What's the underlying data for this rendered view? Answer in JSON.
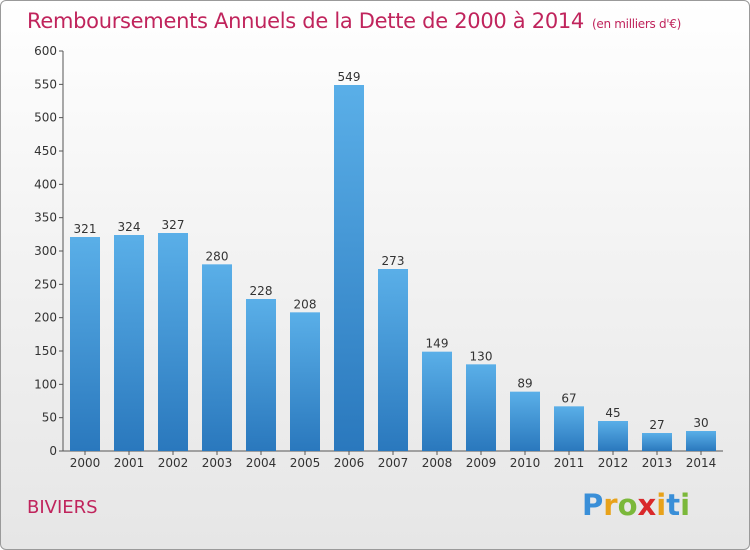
{
  "title": "Remboursements Annuels de la Dette de 2000 à 2014",
  "subtitle": "(en milliers d'€)",
  "commune": "BIVIERS",
  "logo": {
    "letters": [
      "P",
      "r",
      "o",
      "x",
      "i",
      "t",
      "i"
    ],
    "colors": [
      "#3a8fd8",
      "#e8a21a",
      "#7bb83a",
      "#d9282a",
      "#e8a21a",
      "#3a8fd8",
      "#7bb83a"
    ]
  },
  "colors": {
    "title": "#c0245c",
    "bar_top": "#5aafe8",
    "bar_bottom": "#2a78bd"
  },
  "chart_data": {
    "type": "bar",
    "categories": [
      "2000",
      "2001",
      "2002",
      "2003",
      "2004",
      "2005",
      "2006",
      "2007",
      "2008",
      "2009",
      "2010",
      "2011",
      "2012",
      "2013",
      "2014"
    ],
    "values": [
      321,
      324,
      327,
      280,
      228,
      208,
      549,
      273,
      149,
      130,
      89,
      67,
      45,
      27,
      30
    ],
    "ylim": [
      0,
      600
    ],
    "yticks": [
      0,
      50,
      100,
      150,
      200,
      250,
      300,
      350,
      400,
      450,
      500,
      550,
      600
    ],
    "grid": false,
    "legend": "none"
  }
}
